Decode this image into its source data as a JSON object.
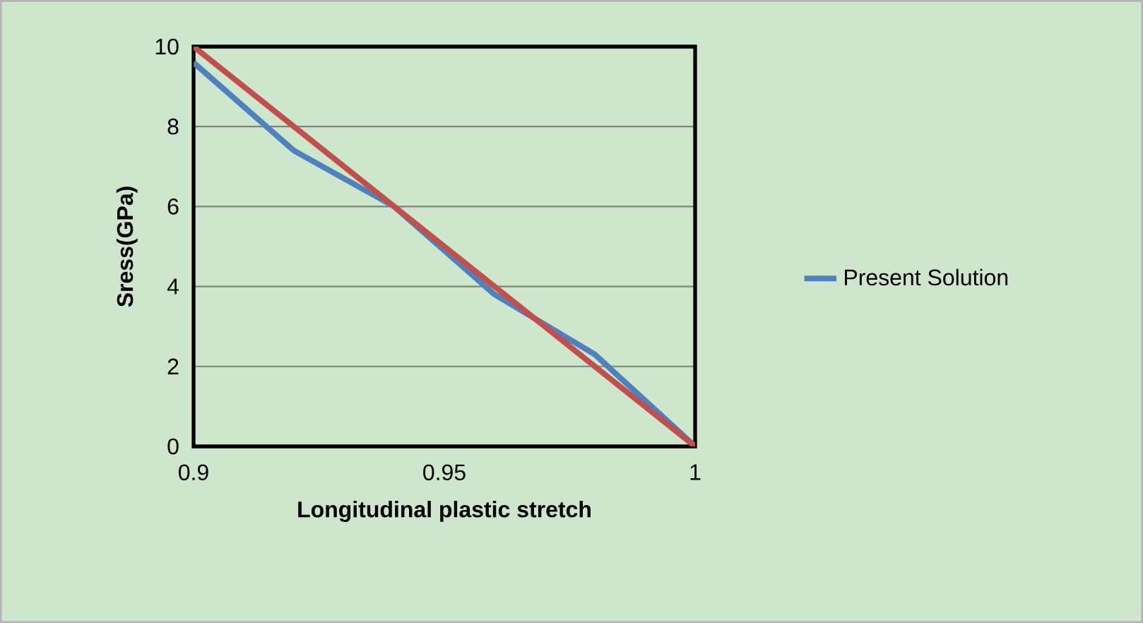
{
  "chart_data": {
    "type": "line",
    "xlabel": "Longitudinal plastic stretch",
    "ylabel": "Sress(GPa)",
    "x": [
      0.9,
      0.92,
      0.94,
      0.96,
      0.98,
      1
    ],
    "series": [
      {
        "name": "Present Solution",
        "color": "#4f81bd",
        "values": [
          9.6,
          7.4,
          6.0,
          3.8,
          2.3,
          0
        ]
      },
      {
        "color": "#c0504d",
        "values": [
          10,
          8,
          6,
          4,
          2,
          0
        ]
      }
    ],
    "xlim": [
      0.9,
      1
    ],
    "ylim": [
      0,
      10
    ],
    "xticks": [
      0.9,
      0.95,
      1
    ],
    "yticks": [
      0,
      2,
      4,
      6,
      8,
      10
    ],
    "grid": "y",
    "legend": "right",
    "marker": "none",
    "line_style": "solid"
  }
}
